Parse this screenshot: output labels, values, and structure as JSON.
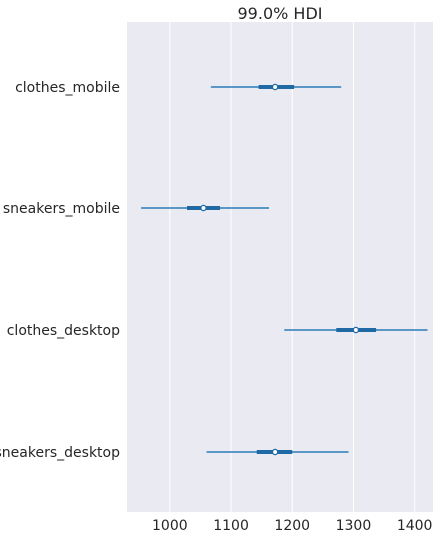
{
  "chart_data": {
    "type": "forest",
    "title": "99.0% HDI",
    "xlabel": "",
    "ylabel": "",
    "xlim": [
      930,
      1430
    ],
    "xticks": [
      1000,
      1100,
      1200,
      1300,
      1400
    ],
    "grid": true,
    "categories": [
      "clothes_mobile",
      "sneakers_mobile",
      "clothes_desktop",
      "sneakers_desktop"
    ],
    "hdi_99_low": [
      1067,
      953,
      1187,
      1060
    ],
    "hdi_99_high": [
      1280,
      1162,
      1421,
      1292
    ],
    "iqr_low": [
      1145,
      1028,
      1272,
      1142
    ],
    "iqr_high": [
      1203,
      1082,
      1337,
      1200
    ],
    "means": [
      1172,
      1055,
      1304,
      1172
    ],
    "colors": {
      "line": "#2a7ab8",
      "thick": "#1f6aa5",
      "background": "#eaeaf2",
      "grid": "#ffffff"
    }
  }
}
